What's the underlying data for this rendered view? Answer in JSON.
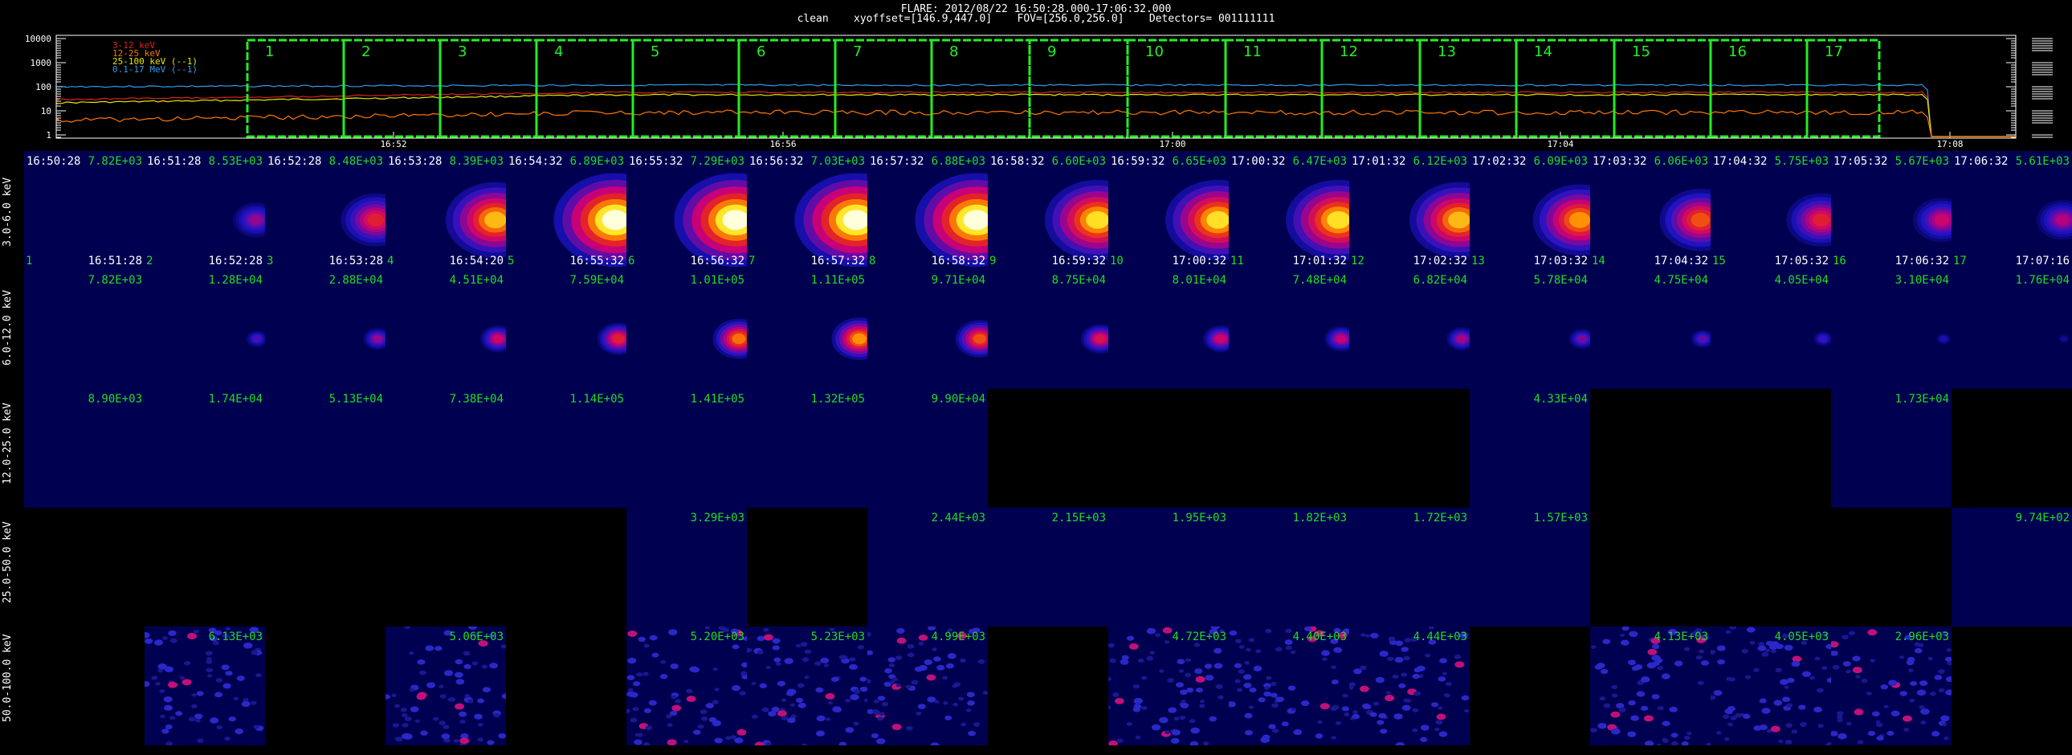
{
  "header": {
    "title": "FLARE: 2012/08/22 16:50:28.000-17:06:32.000",
    "subtitle": "clean    xyoffset=[146.9,447.0]    FOV=[256.0,256.0]    Detectors= 001111111"
  },
  "lightcurve": {
    "y_ticks": [
      "10000",
      "1000",
      "100",
      "10",
      "1"
    ],
    "x_ticks": [
      "16:52",
      "16:56",
      "17:00",
      "17:04",
      "17:08"
    ],
    "legend": [
      {
        "label": "3-12 keV",
        "color": "#dd2222"
      },
      {
        "label": "12-25 keV",
        "color": "#ff7700"
      },
      {
        "label": "25-100 keV (--1)",
        "color": "#e8e800"
      },
      {
        "label": "0.1-17 MeV (--1)",
        "color": "#3399ee"
      }
    ],
    "interval_labels": [
      "1",
      "2",
      "3",
      "4",
      "5",
      "6",
      "7",
      "8",
      "9",
      "10",
      "11",
      "12",
      "13",
      "14",
      "15",
      "16",
      "17"
    ],
    "interval_color": "#22ee22"
  },
  "chart_data": {
    "type": "heatmap",
    "title": "FLARE: 2012/08/22 16:50:28.000-17:06:32.000",
    "energy_bands": [
      "3.0-6.0 keV",
      "6.0-12.0 keV",
      "12.0-25.0 keV",
      "25.0-50.0 keV",
      "50.0-100.0 keV"
    ],
    "intervals": [
      {
        "idx": "1",
        "start": "16:50:28",
        "end": "16:51:28"
      },
      {
        "idx": "2",
        "start": "16:51:28",
        "end": "16:52:28"
      },
      {
        "idx": "3",
        "start": "16:52:28",
        "end": "16:53:28"
      },
      {
        "idx": "4",
        "start": "16:53:28",
        "end": "16:54:20"
      },
      {
        "idx": "5",
        "start": "16:54:32",
        "end": "16:55:32"
      },
      {
        "idx": "6",
        "start": "16:55:32",
        "end": "16:56:32"
      },
      {
        "idx": "7",
        "start": "16:56:32",
        "end": "16:57:32"
      },
      {
        "idx": "8",
        "start": "16:57:32",
        "end": "16:58:32"
      },
      {
        "idx": "9",
        "start": "16:58:32",
        "end": "16:59:32"
      },
      {
        "idx": "10",
        "start": "16:59:32",
        "end": "17:00:32"
      },
      {
        "idx": "11",
        "start": "17:00:32",
        "end": "17:01:32"
      },
      {
        "idx": "12",
        "start": "17:01:32",
        "end": "17:02:32"
      },
      {
        "idx": "13",
        "start": "17:02:32",
        "end": "17:03:32"
      },
      {
        "idx": "14",
        "start": "17:03:32",
        "end": "17:04:32"
      },
      {
        "idx": "15",
        "start": "17:04:32",
        "end": "17:05:32"
      },
      {
        "idx": "16",
        "start": "17:05:32",
        "end": "17:06:32"
      },
      {
        "idx": "17",
        "start": "17:06:32",
        "end": "17:07:16"
      }
    ],
    "max_values": [
      [
        "7.82E+03",
        "8.53E+03",
        "8.48E+03",
        "8.39E+03",
        "6.89E+03",
        "7.29E+03",
        "7.03E+03",
        "6.88E+03",
        "6.60E+03",
        "6.65E+03",
        "6.47E+03",
        "6.12E+03",
        "6.09E+03",
        "6.06E+03",
        "5.75E+03",
        "5.67E+03",
        "5.61E+03"
      ],
      [
        "7.82E+03",
        "1.28E+04",
        "2.88E+04",
        "4.51E+04",
        "7.59E+04",
        "1.01E+05",
        "1.11E+05",
        "9.71E+04",
        "8.75E+04",
        "8.01E+04",
        "7.48E+04",
        "6.82E+04",
        "5.78E+04",
        "4.75E+04",
        "4.05E+04",
        "3.10E+04",
        "1.76E+04"
      ],
      [
        "8.90E+03",
        "1.74E+04",
        "5.13E+04",
        "7.38E+04",
        "1.14E+05",
        "1.41E+05",
        "1.32E+05",
        "9.90E+04",
        "",
        "",
        "",
        "",
        "4.33E+04",
        "",
        "",
        "1.73E+04",
        ""
      ],
      [
        "",
        "",
        "",
        "",
        "",
        "3.29E+03",
        "",
        "2.44E+03",
        "2.15E+03",
        "1.95E+03",
        "1.82E+03",
        "1.72E+03",
        "1.57E+03",
        "",
        "",
        "",
        "9.74E+02"
      ],
      [
        "",
        "6.13E+03",
        "",
        "5.06E+03",
        "",
        "5.20E+03",
        "5.23E+03",
        "4.99E+03",
        "",
        "4.72E+03",
        "4.40E+03",
        "4.44E+03",
        "",
        "4.13E+03",
        "4.05E+03",
        "2.96E+03",
        ""
      ]
    ],
    "image_state": [
      [
        "empty",
        "source",
        "source",
        "source",
        "source",
        "source",
        "source",
        "source",
        "source",
        "source",
        "source",
        "source",
        "source",
        "source",
        "source",
        "source",
        "source"
      ],
      [
        "empty",
        "source",
        "source",
        "source",
        "source",
        "source",
        "source",
        "source",
        "source",
        "source",
        "source",
        "source",
        "source",
        "source",
        "source",
        "source",
        "source"
      ],
      [
        "empty",
        "empty",
        "empty",
        "empty",
        "empty",
        "empty",
        "empty",
        "empty",
        "none",
        "none",
        "none",
        "none",
        "empty",
        "none",
        "none",
        "empty",
        "none"
      ],
      [
        "none",
        "none",
        "none",
        "none",
        "none",
        "empty",
        "none",
        "empty",
        "empty",
        "empty",
        "empty",
        "empty",
        "empty",
        "none",
        "none",
        "none",
        "empty"
      ],
      [
        "none",
        "noise",
        "none",
        "noise",
        "none",
        "noise",
        "noise",
        "noise",
        "none",
        "noise",
        "noise",
        "noise",
        "none",
        "noise",
        "noise",
        "noise",
        "none"
      ]
    ],
    "source_intensity": [
      [
        0,
        0.35,
        0.55,
        0.8,
        1,
        1,
        1,
        1,
        0.85,
        0.85,
        0.85,
        0.8,
        0.75,
        0.65,
        0.55,
        0.45,
        0.4
      ],
      [
        0,
        0.25,
        0.35,
        0.45,
        0.55,
        0.7,
        0.75,
        0.65,
        0.5,
        0.45,
        0.42,
        0.38,
        0.32,
        0.28,
        0.22,
        0.15,
        0.1
      ]
    ],
    "colors": {
      "frame_white": "#ffffff",
      "frame_empty": "#ff5a1a",
      "image_bg": "#000050",
      "max_label": "#22dd22"
    }
  }
}
